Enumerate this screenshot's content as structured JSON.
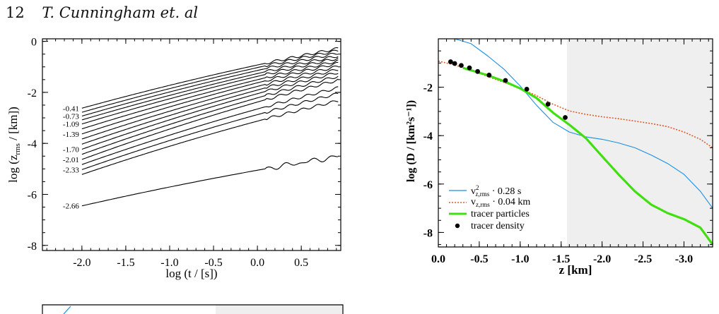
{
  "header": {
    "page_number": "12",
    "authors": "T. Cunningham et. al"
  },
  "chart_data": [
    {
      "type": "line",
      "title": "",
      "xlabel": "log (t / [s])",
      "ylabel": "log (z_rms / [km])",
      "xlim": [
        -2.45,
        0.95
      ],
      "ylim": [
        -8.2,
        0.1
      ],
      "xticks": [
        "-2.0",
        "-1.5",
        "-1.0",
        "-0.5",
        "0.0",
        "0.5"
      ],
      "yticks": [
        "-8",
        "-6",
        "-4",
        "-2",
        "0"
      ],
      "curve_labels": [
        "-0.41",
        "-0.73",
        "-1.09",
        "-1.39",
        "-1.70",
        "-2.01",
        "-2.33",
        "-2.66"
      ],
      "series": [
        {
          "start": -2.62,
          "end": -0.28,
          "shape": "concave"
        },
        {
          "start": -2.78,
          "end": -0.36,
          "shape": "concave"
        },
        {
          "start": -2.93,
          "end": -0.46,
          "shape": "concave"
        },
        {
          "start": -3.08,
          "end": -0.57,
          "shape": "concave"
        },
        {
          "start": -3.24,
          "end": -0.66,
          "shape": "concave"
        },
        {
          "start": -3.43,
          "end": -0.77,
          "shape": "concave"
        },
        {
          "start": -3.63,
          "end": -0.86,
          "shape": "concave"
        },
        {
          "start": -3.83,
          "end": -0.98,
          "shape": "concave"
        },
        {
          "start": -4.03,
          "end": -1.1,
          "shape": "concave"
        },
        {
          "start": -4.23,
          "end": -1.22,
          "shape": "concave"
        },
        {
          "start": -4.43,
          "end": -1.37,
          "shape": "concave"
        },
        {
          "start": -4.63,
          "end": -1.52,
          "shape": "concave"
        },
        {
          "start": -4.83,
          "end": -1.82,
          "shape": "concave"
        },
        {
          "start": -5.03,
          "end": -2.05,
          "shape": "concave"
        },
        {
          "start": -5.22,
          "end": -2.33,
          "shape": "concave"
        },
        {
          "start": -6.45,
          "end": -4.52,
          "shape": "concave"
        }
      ]
    },
    {
      "type": "line",
      "title": "",
      "xlabel": "z [km]",
      "ylabel": "log (D / [km²s⁻¹])",
      "xlim": [
        0.0,
        -3.35
      ],
      "ylim": [
        -8.6,
        0.0
      ],
      "xticks": [
        "0.0",
        "-0.5",
        "-1.0",
        "-1.5",
        "-2.0",
        "-2.5",
        "-3.0"
      ],
      "yticks": [
        "-8",
        "-6",
        "-4",
        "-2"
      ],
      "shaded_region_x": [
        -1.57,
        -3.35
      ],
      "colors": {
        "shade": "#efefef",
        "v2": "#1a8fe0",
        "v": "#e05a2a",
        "tracer": "#40e010",
        "dots": "#000000"
      },
      "legend_position": "bottom-left",
      "series": [
        {
          "name": "v²z,rms · 0.28 s",
          "x": [
            0.0,
            -0.1,
            -0.2,
            -0.4,
            -0.6,
            -0.8,
            -1.0,
            -1.2,
            -1.4,
            -1.6,
            -1.8,
            -2.0,
            -2.2,
            -2.4,
            -2.6,
            -2.8,
            -3.0,
            -3.2,
            -3.35
          ],
          "y": [
            0.8,
            0.55,
            0.3,
            -0.2,
            -0.7,
            -1.25,
            -1.95,
            -2.75,
            -3.45,
            -3.85,
            -4.05,
            -4.15,
            -4.3,
            -4.5,
            -4.8,
            -5.15,
            -5.6,
            -6.3,
            -7.0
          ]
        },
        {
          "name": "vz,rms · 0.04 km",
          "x": [
            0.0,
            -0.2,
            -0.4,
            -0.6,
            -0.8,
            -1.0,
            -1.2,
            -1.4,
            -1.6,
            -1.8,
            -2.0,
            -2.2,
            -2.4,
            -2.6,
            -2.8,
            -3.0,
            -3.2,
            -3.35
          ],
          "y": [
            -0.92,
            -1.08,
            -1.3,
            -1.55,
            -1.8,
            -2.05,
            -2.35,
            -2.7,
            -2.98,
            -3.12,
            -3.22,
            -3.3,
            -3.4,
            -3.5,
            -3.63,
            -3.85,
            -4.15,
            -4.5
          ]
        },
        {
          "name": "tracer particles",
          "x": [
            -0.3,
            -0.4,
            -0.6,
            -0.8,
            -1.0,
            -1.2,
            -1.4,
            -1.6,
            -1.8,
            -2.0,
            -2.2,
            -2.4,
            -2.6,
            -2.8,
            -3.0,
            -3.2,
            -3.35
          ],
          "y": [
            -1.2,
            -1.3,
            -1.5,
            -1.75,
            -2.05,
            -2.45,
            -3.05,
            -3.55,
            -4.1,
            -4.85,
            -5.6,
            -6.3,
            -6.85,
            -7.2,
            -7.45,
            -7.8,
            -8.5
          ]
        },
        {
          "name": "tracer density",
          "x": [
            -0.15,
            -0.2,
            -0.28,
            -0.38,
            -0.48,
            -0.62,
            -0.82,
            -1.08,
            -1.34,
            -1.55
          ],
          "y": [
            -0.95,
            -1.02,
            -1.1,
            -1.2,
            -1.35,
            -1.5,
            -1.72,
            -2.08,
            -2.7,
            -3.25
          ]
        }
      ]
    }
  ]
}
